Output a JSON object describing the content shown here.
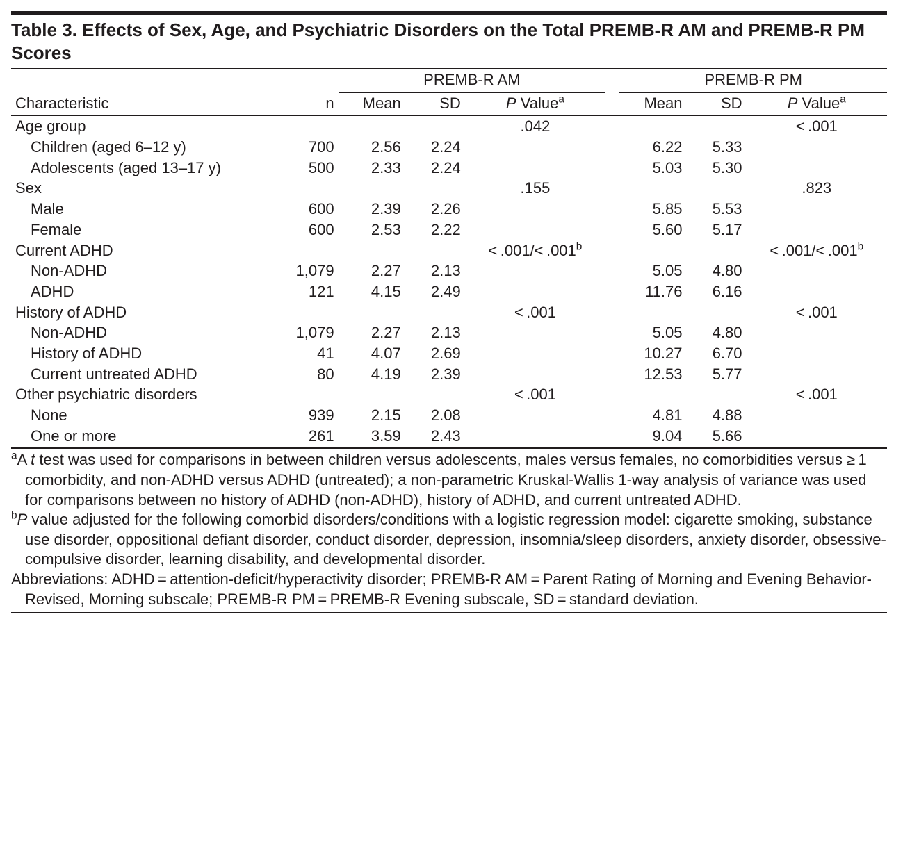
{
  "title": "Table 3. Effects of Sex, Age, and Psychiatric Disorders on the Total PREMB-R AM and PREMB-R PM Scores",
  "headers": {
    "characteristic": "Characteristic",
    "n": "n",
    "am_group": "PREMB-R AM",
    "pm_group": "PREMB-R PM",
    "mean": "Mean",
    "sd": "SD",
    "pvalue_prefix": "P",
    "pvalue_suffix": " Value",
    "pvalue_sup": "a"
  },
  "groups": [
    {
      "label": "Age group",
      "am_p": ".042",
      "pm_p": "< .001",
      "rows": [
        {
          "label": "Children (aged 6–12 y)",
          "n": "700",
          "am_mean": "2.56",
          "am_sd": "2.24",
          "pm_mean": "6.22",
          "pm_sd": "5.33"
        },
        {
          "label": "Adolescents (aged 13–17 y)",
          "n": "500",
          "am_mean": "2.33",
          "am_sd": "2.24",
          "pm_mean": "5.03",
          "pm_sd": "5.30"
        }
      ]
    },
    {
      "label": "Sex",
      "am_p": ".155",
      "pm_p": ".823",
      "rows": [
        {
          "label": "Male",
          "n": "600",
          "am_mean": "2.39",
          "am_sd": "2.26",
          "pm_mean": "5.85",
          "pm_sd": "5.53"
        },
        {
          "label": "Female",
          "n": "600",
          "am_mean": "2.53",
          "am_sd": "2.22",
          "pm_mean": "5.60",
          "pm_sd": "5.17"
        }
      ]
    },
    {
      "label": "Current ADHD",
      "am_p": "< .001/< .001",
      "pm_p": "< .001/< .001",
      "p_sup": "b",
      "rows": [
        {
          "label": "Non-ADHD",
          "n": "1,079",
          "am_mean": "2.27",
          "am_sd": "2.13",
          "pm_mean": "5.05",
          "pm_sd": "4.80"
        },
        {
          "label": "ADHD",
          "n": "121",
          "am_mean": "4.15",
          "am_sd": "2.49",
          "pm_mean": "11.76",
          "pm_sd": "6.16"
        }
      ]
    },
    {
      "label": "History of ADHD",
      "am_p": "< .001",
      "pm_p": "< .001",
      "rows": [
        {
          "label": "Non-ADHD",
          "n": "1,079",
          "am_mean": "2.27",
          "am_sd": "2.13",
          "pm_mean": "5.05",
          "pm_sd": "4.80"
        },
        {
          "label": "History of ADHD",
          "n": "41",
          "am_mean": "4.07",
          "am_sd": "2.69",
          "pm_mean": "10.27",
          "pm_sd": "6.70"
        },
        {
          "label": "Current untreated ADHD",
          "n": "80",
          "am_mean": "4.19",
          "am_sd": "2.39",
          "pm_mean": "12.53",
          "pm_sd": "5.77"
        }
      ]
    },
    {
      "label": "Other psychiatric disorders",
      "am_p": "< .001",
      "pm_p": "< .001",
      "rows": [
        {
          "label": "None",
          "n": "939",
          "am_mean": "2.15",
          "am_sd": "2.08",
          "pm_mean": "4.81",
          "pm_sd": "4.88"
        },
        {
          "label": "One or more",
          "n": "261",
          "am_mean": "3.59",
          "am_sd": "2.43",
          "pm_mean": "9.04",
          "pm_sd": "5.66"
        }
      ]
    }
  ],
  "footnotes": {
    "a_sup": "a",
    "a_text_prefix": "A ",
    "a_text_ital": "t",
    "a_text_rest": " test was used for comparisons in between children versus adolescents, males versus females, no comorbidities versus ≥ 1 comorbidity, and non-ADHD versus ADHD (untreated); a non-parametric Kruskal-Wallis 1-way analysis of variance was used for comparisons between no history of ADHD (non-ADHD), history of ADHD, and current untreated ADHD.",
    "b_sup": "b",
    "b_ital": "P",
    "b_text": " value adjusted for the following comorbid disorders/conditions with a logistic regression model: cigarette smoking, substance use disorder, oppositional defiant disorder, conduct disorder, depression, insomnia/sleep disorders, anxiety disorder, obsessive-compulsive disorder, learning disability, and developmental disorder.",
    "abbrev": "Abbreviations: ADHD = attention-deficit/hyperactivity disorder; PREMB-R AM = Parent Rating of Morning and Evening Behavior-Revised, Morning subscale; PREMB-R PM = PREMB-R Evening subscale, SD = standard deviation."
  }
}
